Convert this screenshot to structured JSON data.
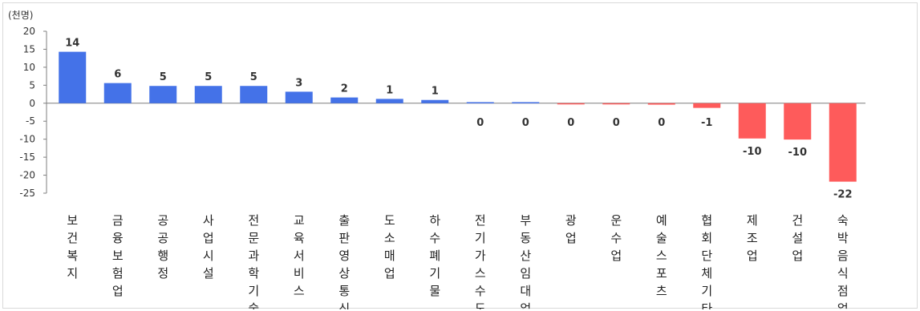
{
  "chart_data": {
    "type": "bar",
    "unit_label": "(천명)",
    "categories": [
      "보건복지",
      "금융보험업",
      "공공행정",
      "사업시설",
      "전문과학기술",
      "교육서비스",
      "출판영상통신",
      "도소매업",
      "하수폐기물",
      "전기가스수도",
      "부동산임대업",
      "광업",
      "운수업",
      "예술스포츠",
      "협회단체기타",
      "제조업",
      "건설업",
      "숙박음식점업"
    ],
    "values": [
      14.3,
      5.6,
      4.8,
      4.8,
      4.8,
      3.2,
      1.6,
      1.2,
      0.9,
      0.3,
      0.3,
      -0.05,
      -0.1,
      -0.4,
      -1.3,
      -9.8,
      -10.1,
      -21.8
    ],
    "data_labels": [
      "14",
      "6",
      "5",
      "5",
      "5",
      "3",
      "2",
      "1",
      "1",
      "0",
      "0",
      "0",
      "0",
      "0",
      "-1",
      "-10",
      "-10",
      "-22"
    ],
    "yticks": [
      20,
      15,
      10,
      5,
      0,
      -5,
      -10,
      -15,
      -20,
      -25
    ],
    "ylim": [
      -25,
      20
    ],
    "colors": {
      "positive": "#4472e8",
      "negative": "#fe5b5b"
    },
    "grid": false,
    "legend": "none"
  }
}
